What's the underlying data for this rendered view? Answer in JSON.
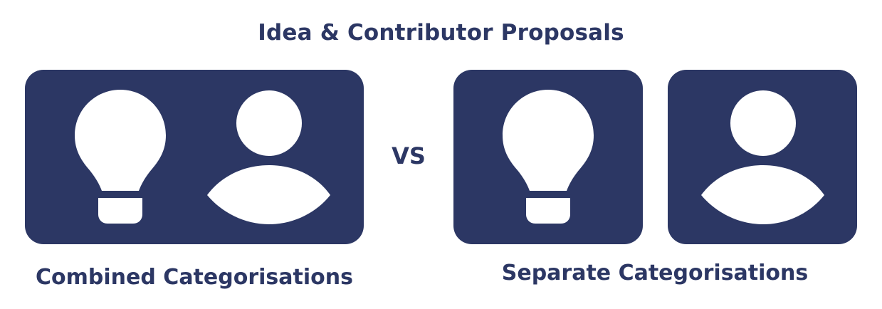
{
  "title": "Idea & Contributor Proposals",
  "separator": "VS",
  "captions": {
    "combined": "Combined Categorisations",
    "separate": "Separate Categorisations"
  },
  "panels": {
    "combined": {
      "icons": [
        "lightbulb-icon",
        "person-icon"
      ]
    },
    "separate": [
      {
        "icons": [
          "lightbulb-icon"
        ]
      },
      {
        "icons": [
          "person-icon"
        ]
      }
    ]
  },
  "colors": {
    "primary": "#2c3764",
    "icon_fill": "#ffffff",
    "background": "#ffffff"
  }
}
